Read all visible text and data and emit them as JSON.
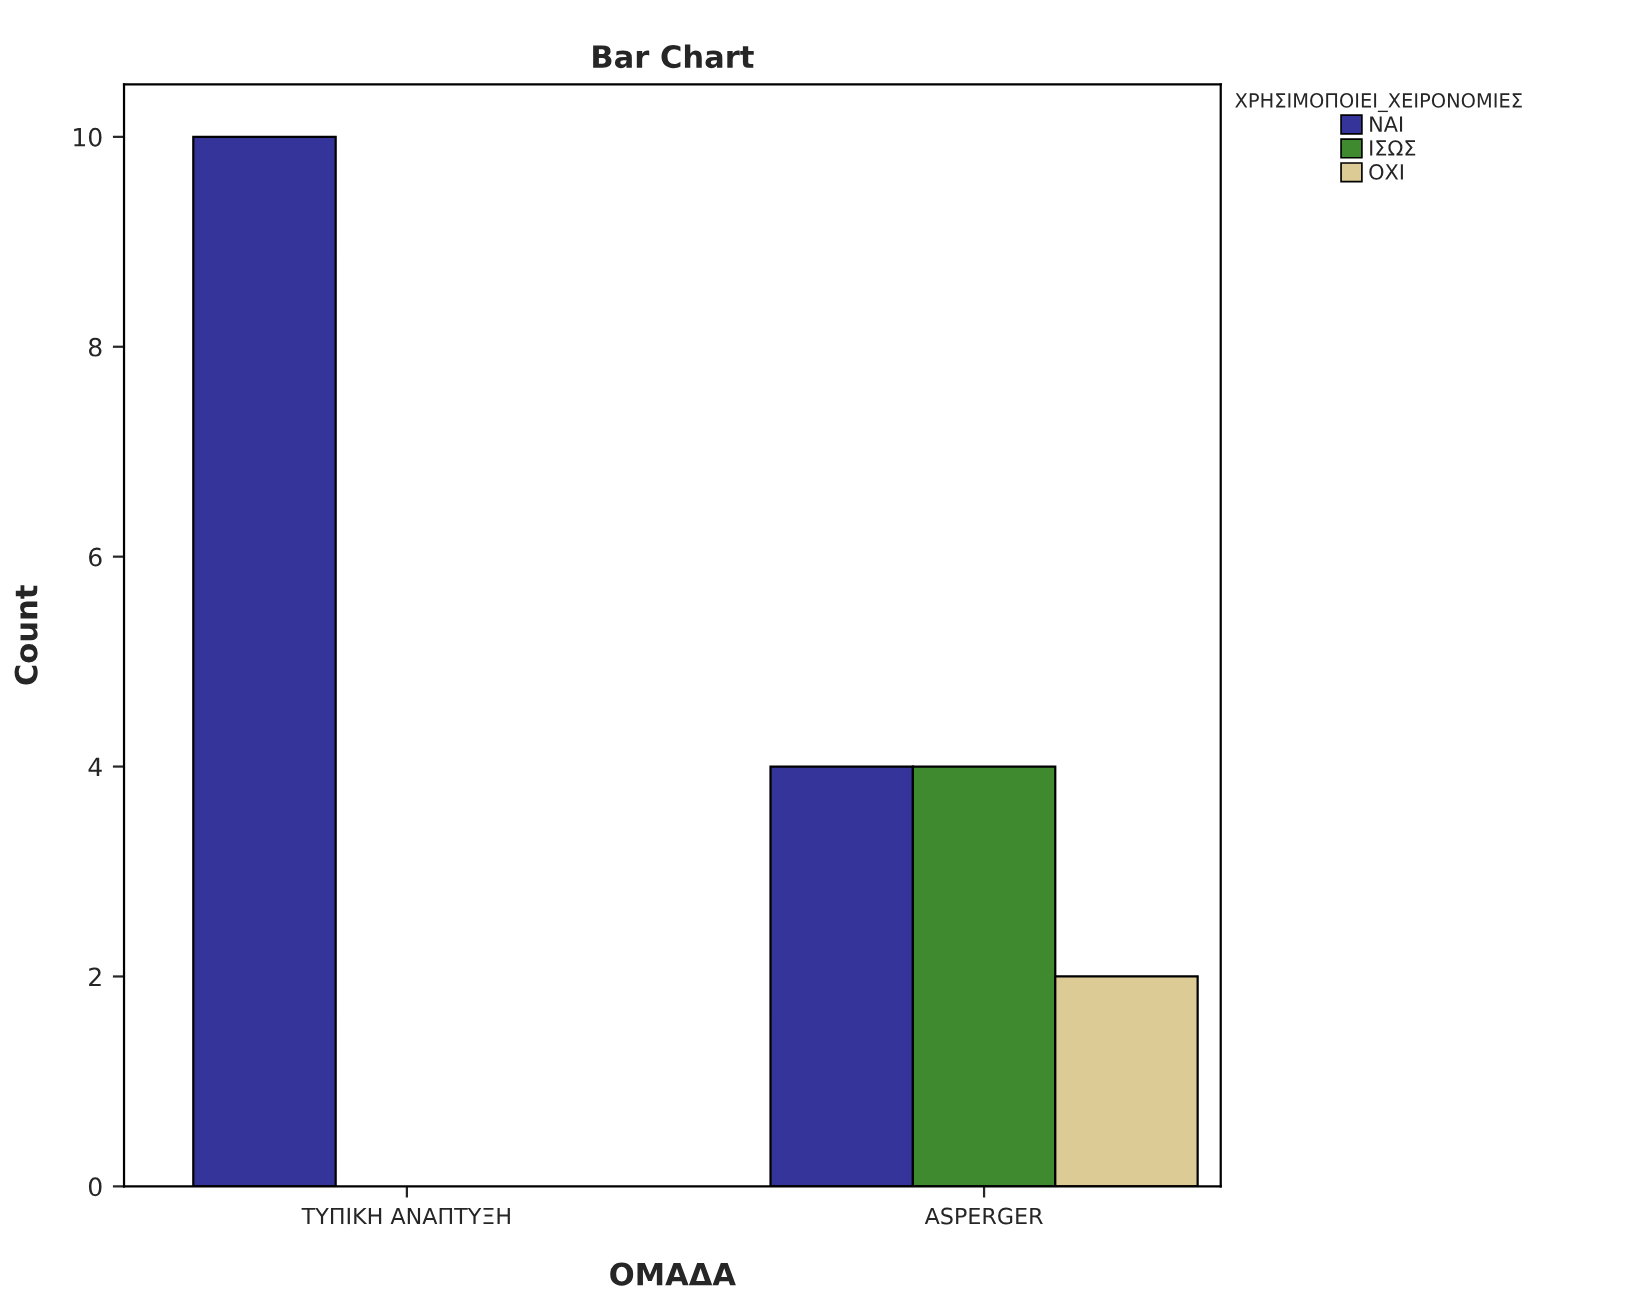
{
  "chart_data": {
    "type": "bar",
    "title": "Bar Chart",
    "xlabel": "ΟΜΑΔΑ",
    "ylabel": "Count",
    "legend_title": "ΧΡΗΣΙΜΟΠΟΙΕΙ_ΧΕΙΡΟΝΟΜΙΕΣ",
    "categories": [
      "ΤΥΠΙΚΗ ΑΝΑΠΤΥΞΗ",
      "ASPERGER"
    ],
    "series": [
      {
        "name": "ΝΑΙ",
        "color": "#34349a",
        "values": [
          10,
          4
        ]
      },
      {
        "name": "ΙΣΩΣ",
        "color": "#3f8a2e",
        "values": [
          null,
          4
        ]
      },
      {
        "name": "ΟΧΙ",
        "color": "#dccb94",
        "values": [
          null,
          2
        ]
      }
    ],
    "ylim": [
      0,
      10.5
    ],
    "yticks": [
      0,
      2,
      4,
      6,
      8,
      10
    ],
    "grid": false,
    "legend": "top right"
  }
}
